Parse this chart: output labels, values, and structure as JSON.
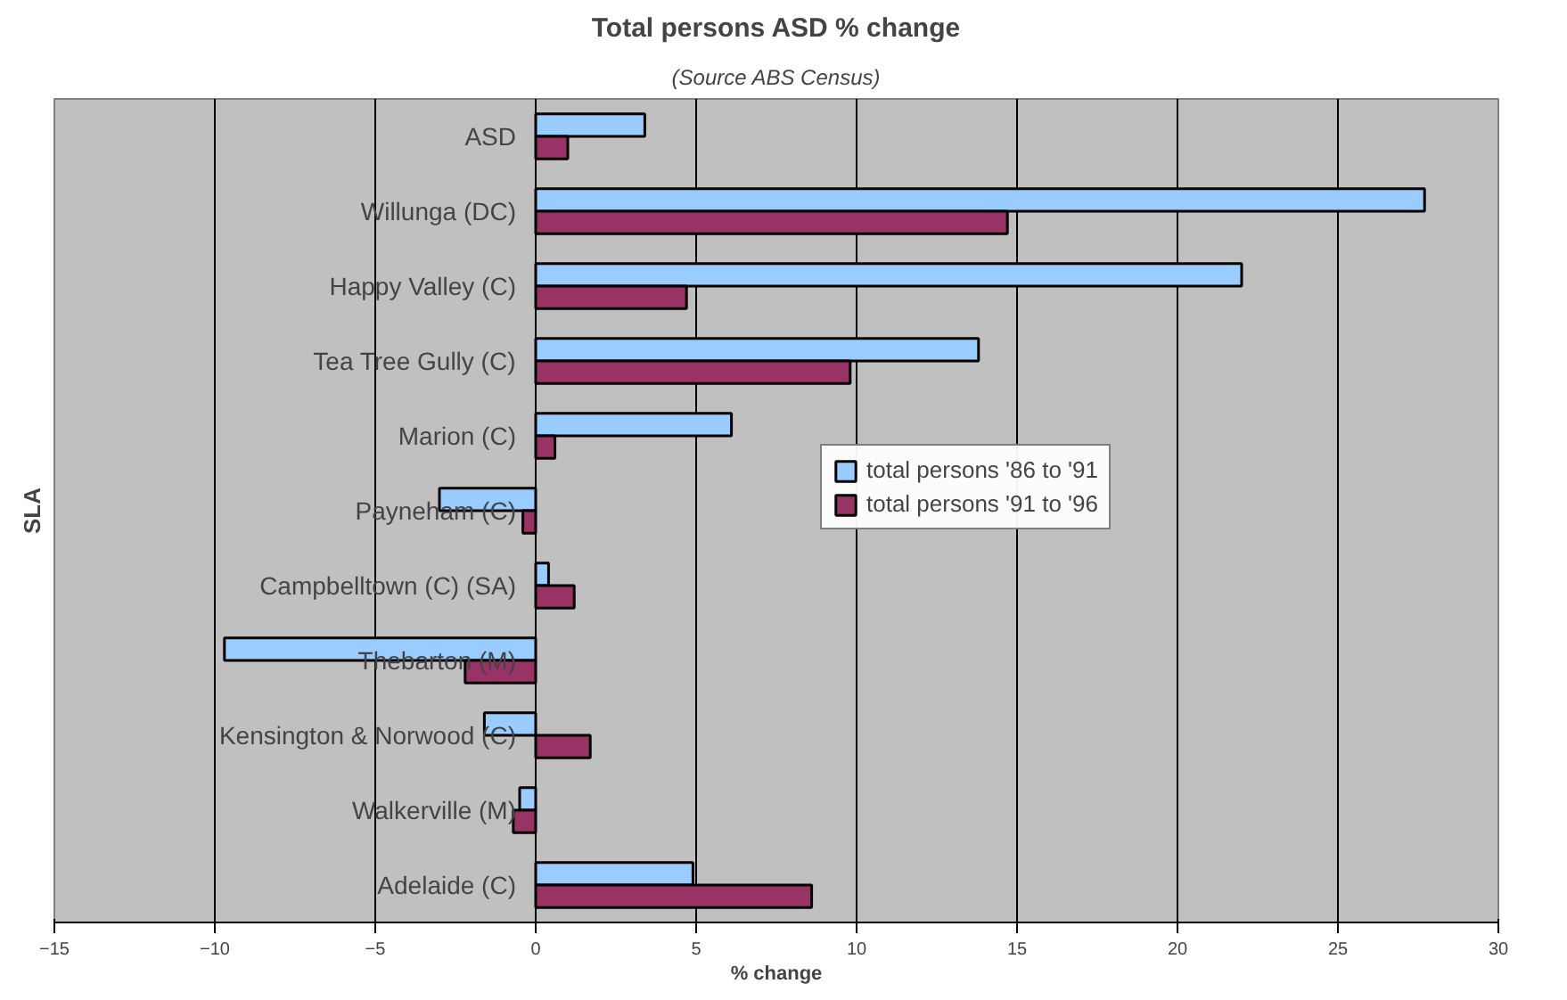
{
  "chart_data": {
    "type": "bar",
    "orientation": "horizontal",
    "title": "Total persons ASD % change",
    "subtitle": "(Source ABS Census)",
    "xlabel": "% change",
    "ylabel": "SLA",
    "categories": [
      "ASD",
      "Willunga (DC)",
      "Happy Valley (C)",
      "Tea Tree Gully (C)",
      "Marion (C)",
      "Payneham (C)",
      "Campbelltown (C) (SA)",
      "Thebarton (M)",
      "Kensington & Norwood (C)",
      "Walkerville (M)",
      "Adelaide (C)"
    ],
    "series": [
      {
        "name": "total persons '86 to '91",
        "color": "#99ccff",
        "values": [
          3.4,
          27.7,
          22.0,
          13.8,
          6.1,
          -3.0,
          0.4,
          -9.7,
          -1.6,
          -0.5,
          4.9
        ]
      },
      {
        "name": "total persons '91 to '96",
        "color": "#993366",
        "values": [
          1.0,
          14.7,
          4.7,
          9.8,
          0.6,
          -0.4,
          1.2,
          -2.2,
          1.7,
          -0.7,
          8.6
        ]
      }
    ],
    "xlim": [
      -15,
      30
    ],
    "xticks": [
      -15,
      -10,
      -5,
      0,
      5,
      10,
      15,
      20,
      25,
      30
    ],
    "grid": "x",
    "legend": "right"
  }
}
